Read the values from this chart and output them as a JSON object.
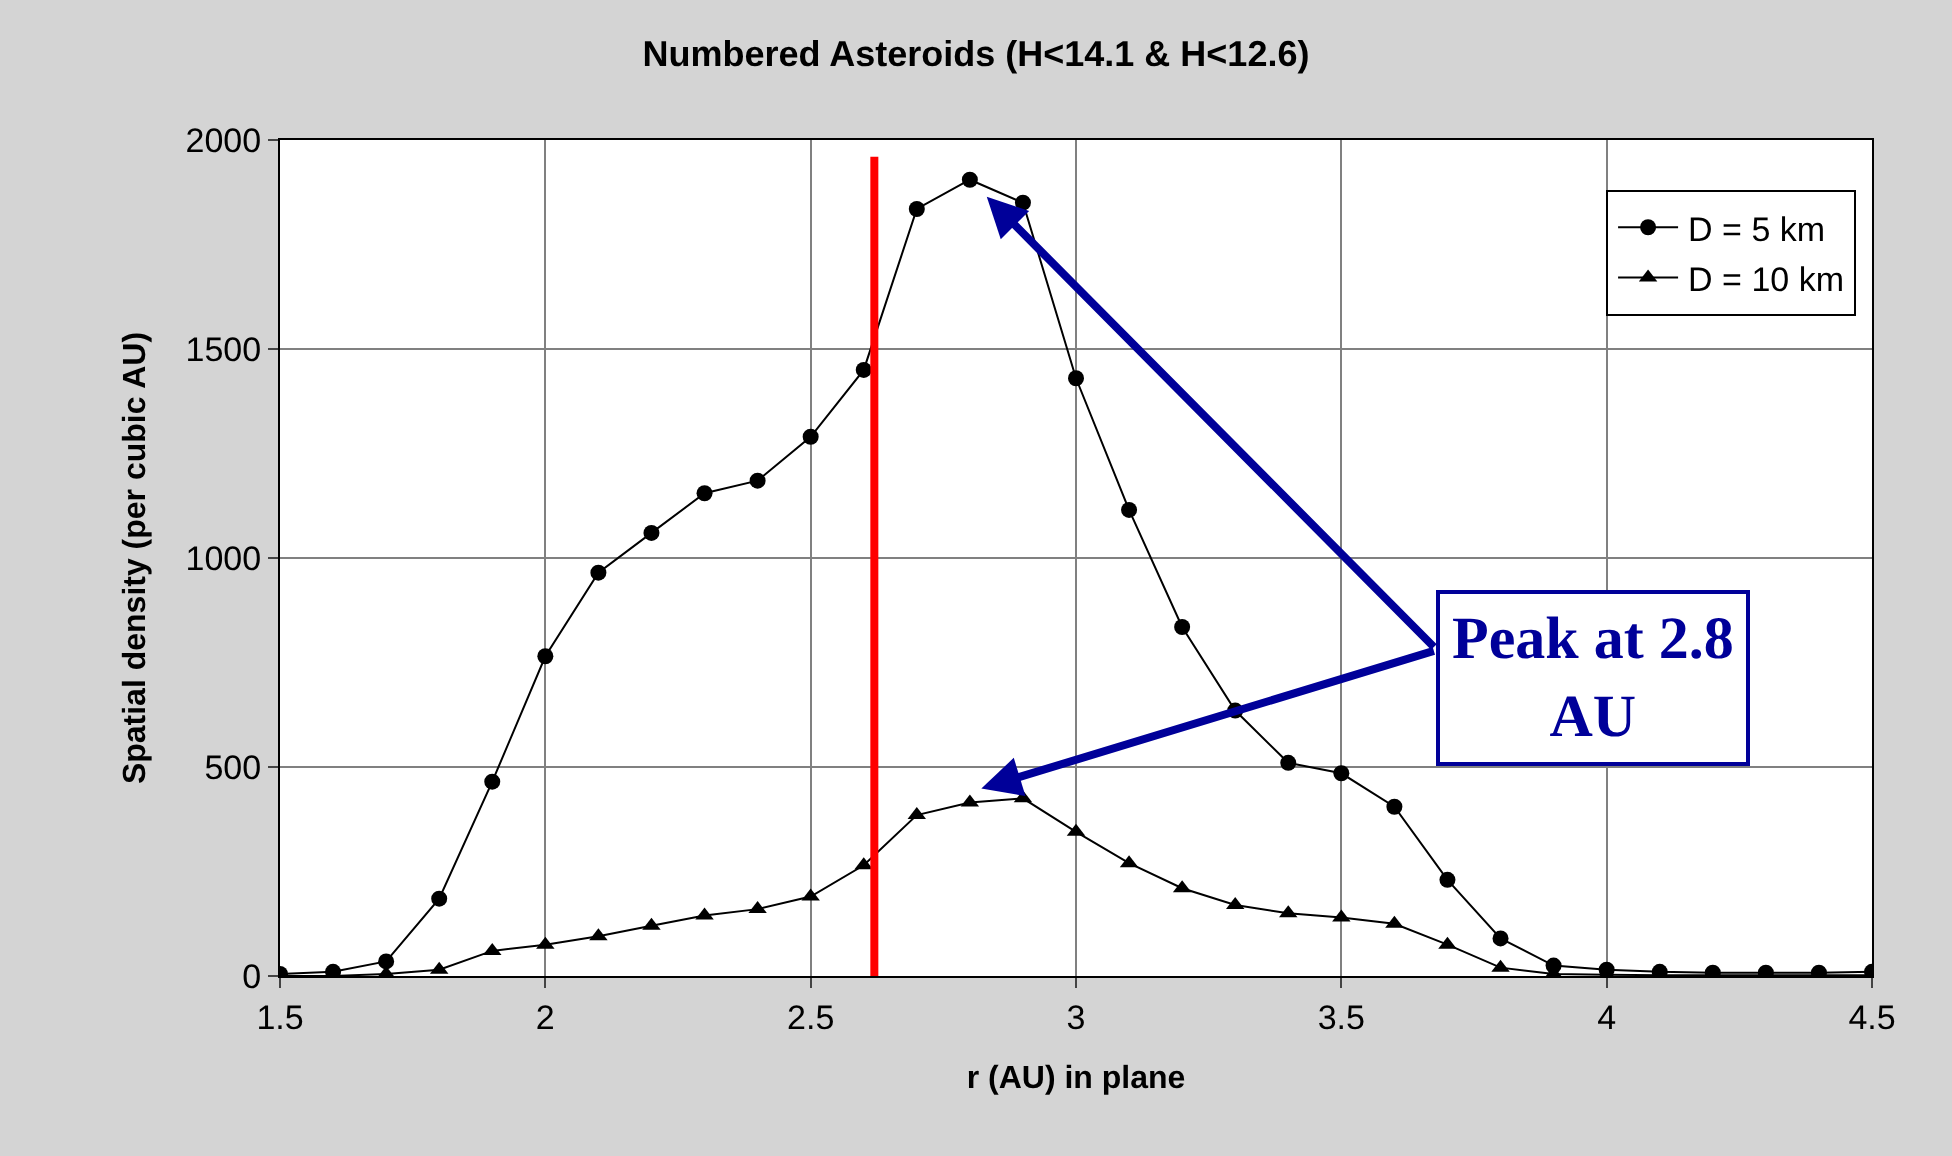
{
  "chart_data": {
    "type": "line",
    "title": "Numbered Asteroids (H<14.1 & H<12.6)",
    "xlabel": "r (AU) in plane",
    "ylabel": "Spatial density (per cubic AU)",
    "x": [
      1.5,
      1.6,
      1.7,
      1.8,
      1.9,
      2.0,
      2.1,
      2.2,
      2.3,
      2.4,
      2.5,
      2.6,
      2.7,
      2.8,
      2.9,
      3.0,
      3.1,
      3.2,
      3.3,
      3.4,
      3.5,
      3.6,
      3.7,
      3.8,
      3.9,
      4.0,
      4.1,
      4.2,
      4.3,
      4.4,
      4.5
    ],
    "series": [
      {
        "name": "D = 5 km",
        "color": "#000000",
        "marker": "circle",
        "values": [
          5,
          10,
          35,
          185,
          465,
          765,
          965,
          1060,
          1155,
          1185,
          1290,
          1450,
          1835,
          1905,
          1850,
          1430,
          1115,
          835,
          635,
          510,
          485,
          405,
          230,
          90,
          25,
          15,
          10,
          8,
          8,
          8,
          10
        ]
      },
      {
        "name": "D = 10 km",
        "color": "#000000",
        "marker": "triangle",
        "values": [
          0,
          0,
          5,
          15,
          60,
          75,
          95,
          120,
          145,
          160,
          190,
          265,
          385,
          415,
          425,
          345,
          270,
          210,
          170,
          150,
          140,
          125,
          75,
          20,
          5,
          3,
          2,
          2,
          2,
          2,
          2
        ]
      }
    ],
    "xlim": [
      1.5,
      4.5
    ],
    "xticks": [
      1.5,
      2,
      2.5,
      3,
      3.5,
      4,
      4.5
    ],
    "ylim": [
      0,
      2000
    ],
    "yticks": [
      0,
      500,
      1000,
      1500,
      2000
    ],
    "grid": true,
    "legend": "top right",
    "line_style": "solid",
    "ref_lines": [
      {
        "axis": "x",
        "value": 2.62,
        "color": "#ff0000"
      }
    ],
    "annotations": [
      {
        "text": "Peak at 2.8 AU",
        "x": 2.8,
        "y": 1905
      }
    ]
  }
}
